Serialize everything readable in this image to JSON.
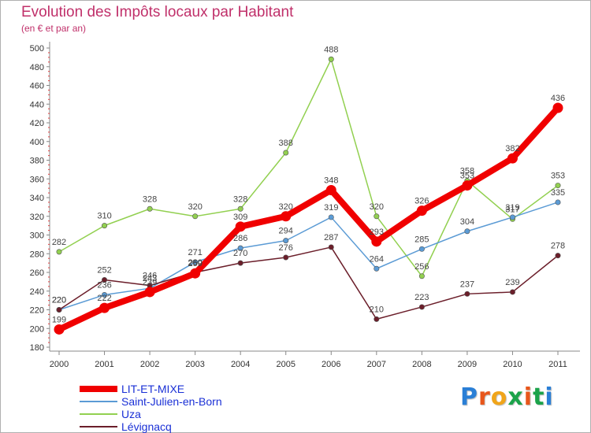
{
  "title": "Evolution des Impôts locaux par Habitant",
  "subtitle": "(en € et par an)",
  "brand": {
    "text": "Proxiti",
    "letter_colors": [
      "#2a7fd6",
      "#e8561b",
      "#f0a51a",
      "#1ba34a",
      "#e8561b",
      "#1ba34a",
      "#2a7fd6"
    ]
  },
  "chart_data": {
    "type": "line",
    "x": [
      "2000",
      "2001",
      "2002",
      "2003",
      "2004",
      "2005",
      "2006",
      "2007",
      "2008",
      "2009",
      "2010",
      "2011"
    ],
    "ylim": [
      180,
      500
    ],
    "yticks": [
      180,
      200,
      220,
      240,
      260,
      280,
      300,
      320,
      340,
      360,
      380,
      400,
      420,
      440,
      460,
      480,
      500
    ],
    "grid": false,
    "legend_position": "bottom-left",
    "series": [
      {
        "name": "LIT-ET-MIXE",
        "color": "#f00000",
        "values": [
          199,
          222,
          239,
          259,
          309,
          320,
          348,
          293,
          326,
          353,
          382,
          436
        ],
        "labels": [
          "199",
          "222",
          "239",
          "259",
          "309",
          "320",
          "348",
          "293",
          "326",
          "353",
          "382",
          "436"
        ]
      },
      {
        "name": "Saint-Julien-en-Born",
        "color": "#5b9bd5",
        "values": [
          220,
          236,
          243,
          271,
          286,
          294,
          319,
          264,
          285,
          304,
          319,
          335
        ],
        "labels": [
          "220",
          "236",
          "243",
          "271",
          "286",
          "294",
          "319",
          "264",
          "285",
          "304",
          "319",
          "335"
        ]
      },
      {
        "name": "Uza",
        "color": "#92d050",
        "values": [
          282,
          310,
          328,
          320,
          328,
          388,
          488,
          320,
          256,
          358,
          317,
          353
        ],
        "labels": [
          "282",
          "310",
          "328",
          "320",
          "328",
          "388",
          "488",
          "320",
          "256",
          "358",
          "317",
          "353"
        ]
      },
      {
        "name": "Lévignacq",
        "color": "#6b1e2a",
        "values": [
          220,
          252,
          246,
          260,
          270,
          276,
          287,
          210,
          223,
          237,
          239,
          278
        ],
        "labels": [
          "220",
          "252",
          "246",
          "260",
          "270",
          "276",
          "287",
          "210",
          "223",
          "237",
          "239",
          "278"
        ]
      }
    ]
  }
}
